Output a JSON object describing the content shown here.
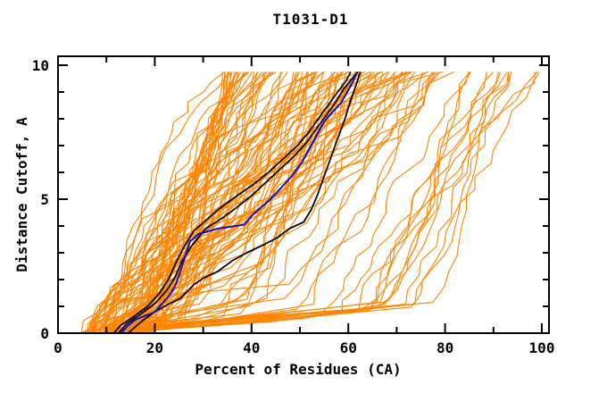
{
  "chart_data": {
    "type": "line",
    "title": "T1031-D1",
    "xlabel": "Percent of Residues (CA)",
    "ylabel": "Distance Cutoff, A",
    "xlim": [
      0,
      101.5
    ],
    "ylim": [
      0,
      10.33
    ],
    "x_major_ticks": [
      0,
      20,
      40,
      60,
      80,
      100
    ],
    "x_minor_ticks": [
      10,
      30,
      50,
      70,
      90
    ],
    "y_major_ticks": [
      0,
      5,
      10
    ],
    "y_minor_ticks": [
      1,
      2,
      3,
      4,
      6,
      7,
      8,
      9
    ],
    "grid": false,
    "legend": "none",
    "background_color": "#ffffff",
    "frame_color": "#000000",
    "curve_top_cutoff": 9.75,
    "ensemble": {
      "name": "prediction-curves",
      "color": "#ff8400",
      "count": 100,
      "low_rise_count": 14,
      "seed": 1031,
      "start_x_range": [
        4.5,
        19.5
      ],
      "top_x_range": [
        34,
        82
      ],
      "low_rise_start_x_range": [
        6,
        16
      ],
      "low_rise_top_x_range": [
        84,
        101
      ]
    },
    "highlighted_series": [
      {
        "name": "model-black-1",
        "color": "#000000",
        "width": 1.8,
        "points": [
          [
            11.5,
            0
          ],
          [
            13,
            0.3
          ],
          [
            15.5,
            0.6
          ],
          [
            18.5,
            1.0
          ],
          [
            21,
            1.5
          ],
          [
            22.8,
            2.0
          ],
          [
            24.3,
            2.6
          ],
          [
            26,
            3.2
          ],
          [
            28,
            3.8
          ],
          [
            30.5,
            4.2
          ],
          [
            33,
            4.6
          ],
          [
            36,
            5.0
          ],
          [
            40,
            5.5
          ],
          [
            43.5,
            6.0
          ],
          [
            46.5,
            6.5
          ],
          [
            49.5,
            7.0
          ],
          [
            51.8,
            7.5
          ],
          [
            53.8,
            8.0
          ],
          [
            55.8,
            8.5
          ],
          [
            57.8,
            9.0
          ],
          [
            59.5,
            9.4
          ],
          [
            60.5,
            9.75
          ]
        ]
      },
      {
        "name": "model-black-2",
        "color": "#000000",
        "width": 1.8,
        "points": [
          [
            12.5,
            0
          ],
          [
            14.2,
            0.35
          ],
          [
            17,
            0.7
          ],
          [
            20,
            1.1
          ],
          [
            22.5,
            1.6
          ],
          [
            24.2,
            2.1
          ],
          [
            25.6,
            2.7
          ],
          [
            27.8,
            3.3
          ],
          [
            30.5,
            3.9
          ],
          [
            34,
            4.3
          ],
          [
            37,
            4.7
          ],
          [
            39.8,
            5.1
          ],
          [
            42.8,
            5.6
          ],
          [
            45.8,
            6.1
          ],
          [
            48.8,
            6.6
          ],
          [
            51.3,
            7.1
          ],
          [
            53.3,
            7.6
          ],
          [
            55.3,
            8.1
          ],
          [
            57.3,
            8.6
          ],
          [
            59,
            9.1
          ],
          [
            60.8,
            9.5
          ],
          [
            62,
            9.75
          ]
        ]
      },
      {
        "name": "model-black-3",
        "color": "#000000",
        "width": 1.8,
        "points": [
          [
            14.5,
            0
          ],
          [
            17,
            0.4
          ],
          [
            20,
            0.8
          ],
          [
            23,
            1.1
          ],
          [
            25.3,
            1.3
          ],
          [
            28,
            1.8
          ],
          [
            30,
            2.05
          ],
          [
            33,
            2.3
          ],
          [
            36,
            2.7
          ],
          [
            39,
            3.0
          ],
          [
            42.5,
            3.3
          ],
          [
            45.2,
            3.55
          ],
          [
            47.8,
            3.9
          ],
          [
            50.8,
            4.15
          ],
          [
            52.3,
            4.6
          ],
          [
            53.5,
            5.1
          ],
          [
            54.5,
            5.6
          ],
          [
            55.5,
            6.1
          ],
          [
            56.5,
            6.6
          ],
          [
            57.5,
            7.1
          ],
          [
            58.5,
            7.6
          ],
          [
            59.5,
            8.1
          ],
          [
            60.5,
            8.7
          ],
          [
            61.5,
            9.2
          ],
          [
            62.5,
            9.75
          ]
        ]
      },
      {
        "name": "model-blue",
        "color": "#0d0dcd",
        "width": 2,
        "points": [
          [
            13,
            0
          ],
          [
            14.4,
            0.27
          ],
          [
            16,
            0.5
          ],
          [
            18,
            0.65
          ],
          [
            19.9,
            0.77
          ],
          [
            21.5,
            1.1
          ],
          [
            23.1,
            1.43
          ],
          [
            24.2,
            1.77
          ],
          [
            24.9,
            2.1
          ],
          [
            25.8,
            2.6
          ],
          [
            26.5,
            3.0
          ],
          [
            27.3,
            3.43
          ],
          [
            29,
            3.7
          ],
          [
            33,
            3.9
          ],
          [
            38.5,
            4.05
          ],
          [
            40.3,
            4.43
          ],
          [
            42,
            4.7
          ],
          [
            43.9,
            5.0
          ],
          [
            46,
            5.4
          ],
          [
            48.5,
            5.9
          ],
          [
            50.5,
            6.4
          ],
          [
            52,
            6.9
          ],
          [
            53.5,
            7.4
          ],
          [
            55,
            7.9
          ],
          [
            57,
            8.3
          ],
          [
            58.5,
            8.6
          ],
          [
            59.8,
            9.0
          ],
          [
            61,
            9.4
          ],
          [
            61.8,
            9.75
          ]
        ]
      }
    ]
  }
}
